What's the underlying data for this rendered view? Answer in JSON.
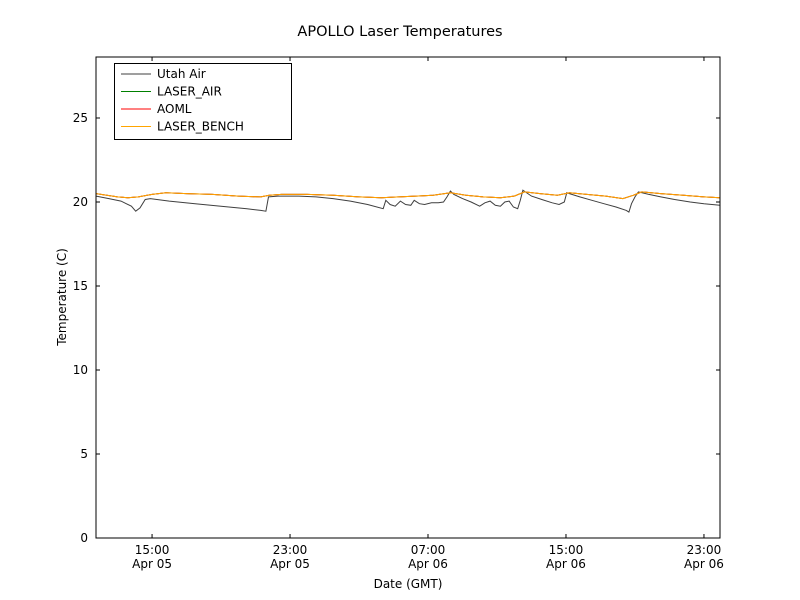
{
  "figure": {
    "title": "APOLLO Laser Temperatures",
    "xlabel": "Date (GMT)",
    "ylabel": "Temperature (C)"
  },
  "chart_data": {
    "type": "line",
    "title": "APOLLO Laser Temperatures",
    "xlabel": "Date (GMT)",
    "ylabel": "Temperature (C)",
    "x_unit": "hours since Apr 05 00:00 GMT",
    "xlim": [
      11.75,
      47.93
    ],
    "ylim": [
      0,
      28.63
    ],
    "yticks": [
      0,
      5,
      10,
      15,
      20,
      25
    ],
    "xticks": [
      {
        "pos": 15,
        "time": "15:00",
        "date": "Apr 05"
      },
      {
        "pos": 23,
        "time": "23:00",
        "date": "Apr 05"
      },
      {
        "pos": 31,
        "time": "07:00",
        "date": "Apr 06"
      },
      {
        "pos": 39,
        "time": "15:00",
        "date": "Apr 06"
      },
      {
        "pos": 47,
        "time": "23:00",
        "date": "Apr 06"
      }
    ],
    "grid": false,
    "legend_position": "upper left",
    "note": "LASER_AIR and AOML overlap LASER_BENCH and are hidden beneath it",
    "series": [
      {
        "name": "Utah Air",
        "color": "#3f3f3f",
        "x": [
          11.75,
          12.5,
          13.2,
          13.8,
          14.05,
          14.3,
          14.6,
          14.9,
          16,
          17.5,
          19,
          20.5,
          21.3,
          21.6,
          21.75,
          22.3,
          23.5,
          24.5,
          25.5,
          26.5,
          27.5,
          28.4,
          28.55,
          28.8,
          29.1,
          29.4,
          29.7,
          30.0,
          30.2,
          30.5,
          30.8,
          31.2,
          31.6,
          31.9,
          32.1,
          32.3,
          32.5,
          33.0,
          33.5,
          34.0,
          34.3,
          34.6,
          34.9,
          35.2,
          35.45,
          35.7,
          35.95,
          36.2,
          36.35,
          36.5,
          37.0,
          37.6,
          38.2,
          38.6,
          38.9,
          39.05,
          39.2,
          39.8,
          40.5,
          41.2,
          41.9,
          42.5,
          42.65,
          42.8,
          43.0,
          43.2,
          43.8,
          44.5,
          45.3,
          46.2,
          47.0,
          47.93
        ],
        "y": [
          20.35,
          20.2,
          20.05,
          19.75,
          19.45,
          19.65,
          20.15,
          20.2,
          20.05,
          19.9,
          19.75,
          19.6,
          19.5,
          19.45,
          20.3,
          20.35,
          20.35,
          20.3,
          20.2,
          20.05,
          19.85,
          19.6,
          20.1,
          19.85,
          19.75,
          20.05,
          19.85,
          19.8,
          20.1,
          19.9,
          19.85,
          19.95,
          19.95,
          20.0,
          20.3,
          20.65,
          20.45,
          20.2,
          20.0,
          19.75,
          19.95,
          20.05,
          19.8,
          19.75,
          20.0,
          20.05,
          19.7,
          19.6,
          20.1,
          20.7,
          20.35,
          20.15,
          19.95,
          19.85,
          20.0,
          20.55,
          20.5,
          20.3,
          20.1,
          19.9,
          19.7,
          19.5,
          19.4,
          19.9,
          20.3,
          20.6,
          20.45,
          20.3,
          20.15,
          20.0,
          19.9,
          19.8
        ]
      },
      {
        "name": "LASER_AIR",
        "color": "#008000",
        "x": [
          11.75,
          13.0,
          13.6,
          14.2,
          15.0,
          15.8,
          17,
          18.5,
          20,
          21.3,
          21.8,
          22.5,
          24,
          25.5,
          27,
          28.3,
          29.3,
          30.3,
          31.3,
          32.3,
          33.2,
          34.2,
          35.2,
          36.0,
          36.6,
          37.5,
          38.5,
          39.2,
          40.2,
          41.3,
          42.3,
          42.9,
          43.4,
          44.5,
          45.8,
          47.0,
          47.93
        ],
        "y": [
          20.5,
          20.3,
          20.25,
          20.3,
          20.45,
          20.55,
          20.5,
          20.45,
          20.35,
          20.3,
          20.4,
          20.45,
          20.45,
          20.4,
          20.3,
          20.25,
          20.3,
          20.35,
          20.4,
          20.55,
          20.4,
          20.3,
          20.25,
          20.35,
          20.6,
          20.5,
          20.4,
          20.55,
          20.45,
          20.35,
          20.2,
          20.4,
          20.6,
          20.5,
          20.4,
          20.3,
          20.25
        ]
      },
      {
        "name": "AOML",
        "color": "#ff0000",
        "x": [
          11.75,
          13.0,
          13.6,
          14.2,
          15.0,
          15.8,
          17,
          18.5,
          20,
          21.3,
          21.8,
          22.5,
          24,
          25.5,
          27,
          28.3,
          29.3,
          30.3,
          31.3,
          32.3,
          33.2,
          34.2,
          35.2,
          36.0,
          36.6,
          37.5,
          38.5,
          39.2,
          40.2,
          41.3,
          42.3,
          42.9,
          43.4,
          44.5,
          45.8,
          47.0,
          47.93
        ],
        "y": [
          20.5,
          20.3,
          20.25,
          20.3,
          20.45,
          20.55,
          20.5,
          20.45,
          20.35,
          20.3,
          20.4,
          20.45,
          20.45,
          20.4,
          20.3,
          20.25,
          20.3,
          20.35,
          20.4,
          20.55,
          20.4,
          20.3,
          20.25,
          20.35,
          20.6,
          20.5,
          20.4,
          20.55,
          20.45,
          20.35,
          20.2,
          20.4,
          20.6,
          20.5,
          20.4,
          20.3,
          20.25
        ]
      },
      {
        "name": "LASER_BENCH",
        "color": "#ffa500",
        "x": [
          11.75,
          13.0,
          13.6,
          14.2,
          15.0,
          15.8,
          17,
          18.5,
          20,
          21.3,
          21.8,
          22.5,
          24,
          25.5,
          27,
          28.3,
          29.3,
          30.3,
          31.3,
          32.3,
          33.2,
          34.2,
          35.2,
          36.0,
          36.6,
          37.5,
          38.5,
          39.2,
          40.2,
          41.3,
          42.3,
          42.9,
          43.4,
          44.5,
          45.8,
          47.0,
          47.93
        ],
        "y": [
          20.5,
          20.3,
          20.25,
          20.3,
          20.45,
          20.55,
          20.5,
          20.45,
          20.35,
          20.3,
          20.4,
          20.45,
          20.45,
          20.4,
          20.3,
          20.25,
          20.3,
          20.35,
          20.4,
          20.55,
          20.4,
          20.3,
          20.25,
          20.35,
          20.6,
          20.5,
          20.4,
          20.55,
          20.45,
          20.35,
          20.2,
          20.4,
          20.6,
          20.5,
          20.4,
          20.3,
          20.25
        ]
      }
    ]
  }
}
